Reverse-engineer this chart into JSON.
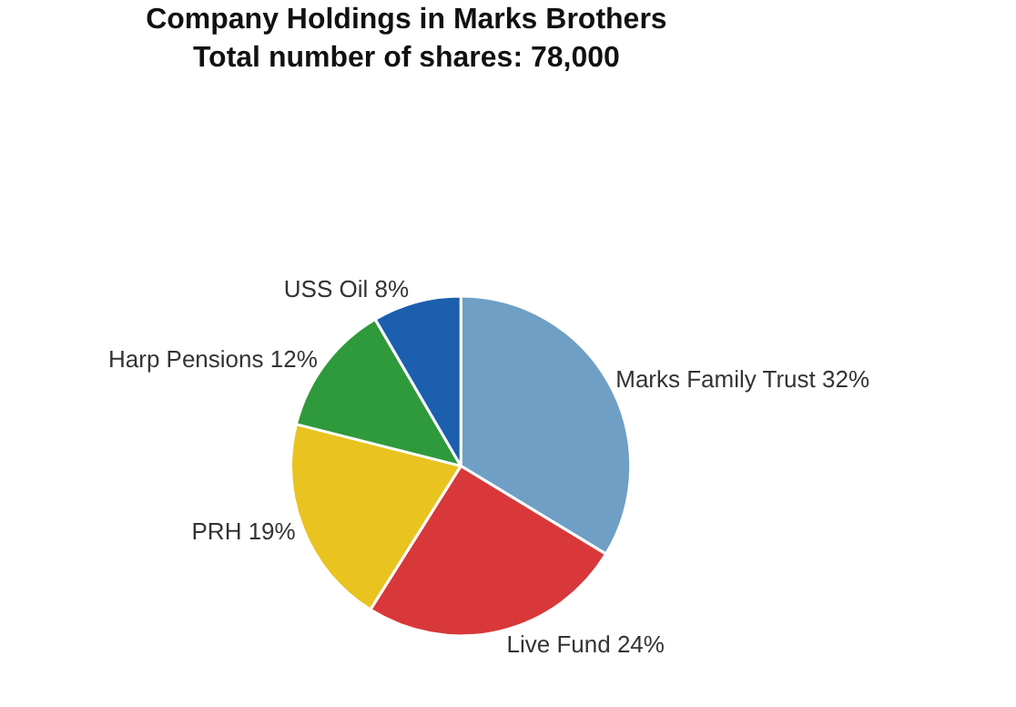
{
  "chart_data": {
    "type": "pie",
    "title": "Company Holdings in Marks Brothers",
    "subtitle": "Total number of shares: 78,000",
    "categories": [
      "Marks Family Trust",
      "Live Fund",
      "PRH",
      "Harp Pensions",
      "USS Oil"
    ],
    "values": [
      32,
      24,
      19,
      12,
      8
    ],
    "value_labels": [
      "32%",
      "24%",
      "19%",
      "12%",
      "8%"
    ],
    "colors": [
      "#6f9fc4",
      "#d8383a",
      "#e9c31f",
      "#2f9a3b",
      "#1b5fae"
    ],
    "legend": false
  }
}
